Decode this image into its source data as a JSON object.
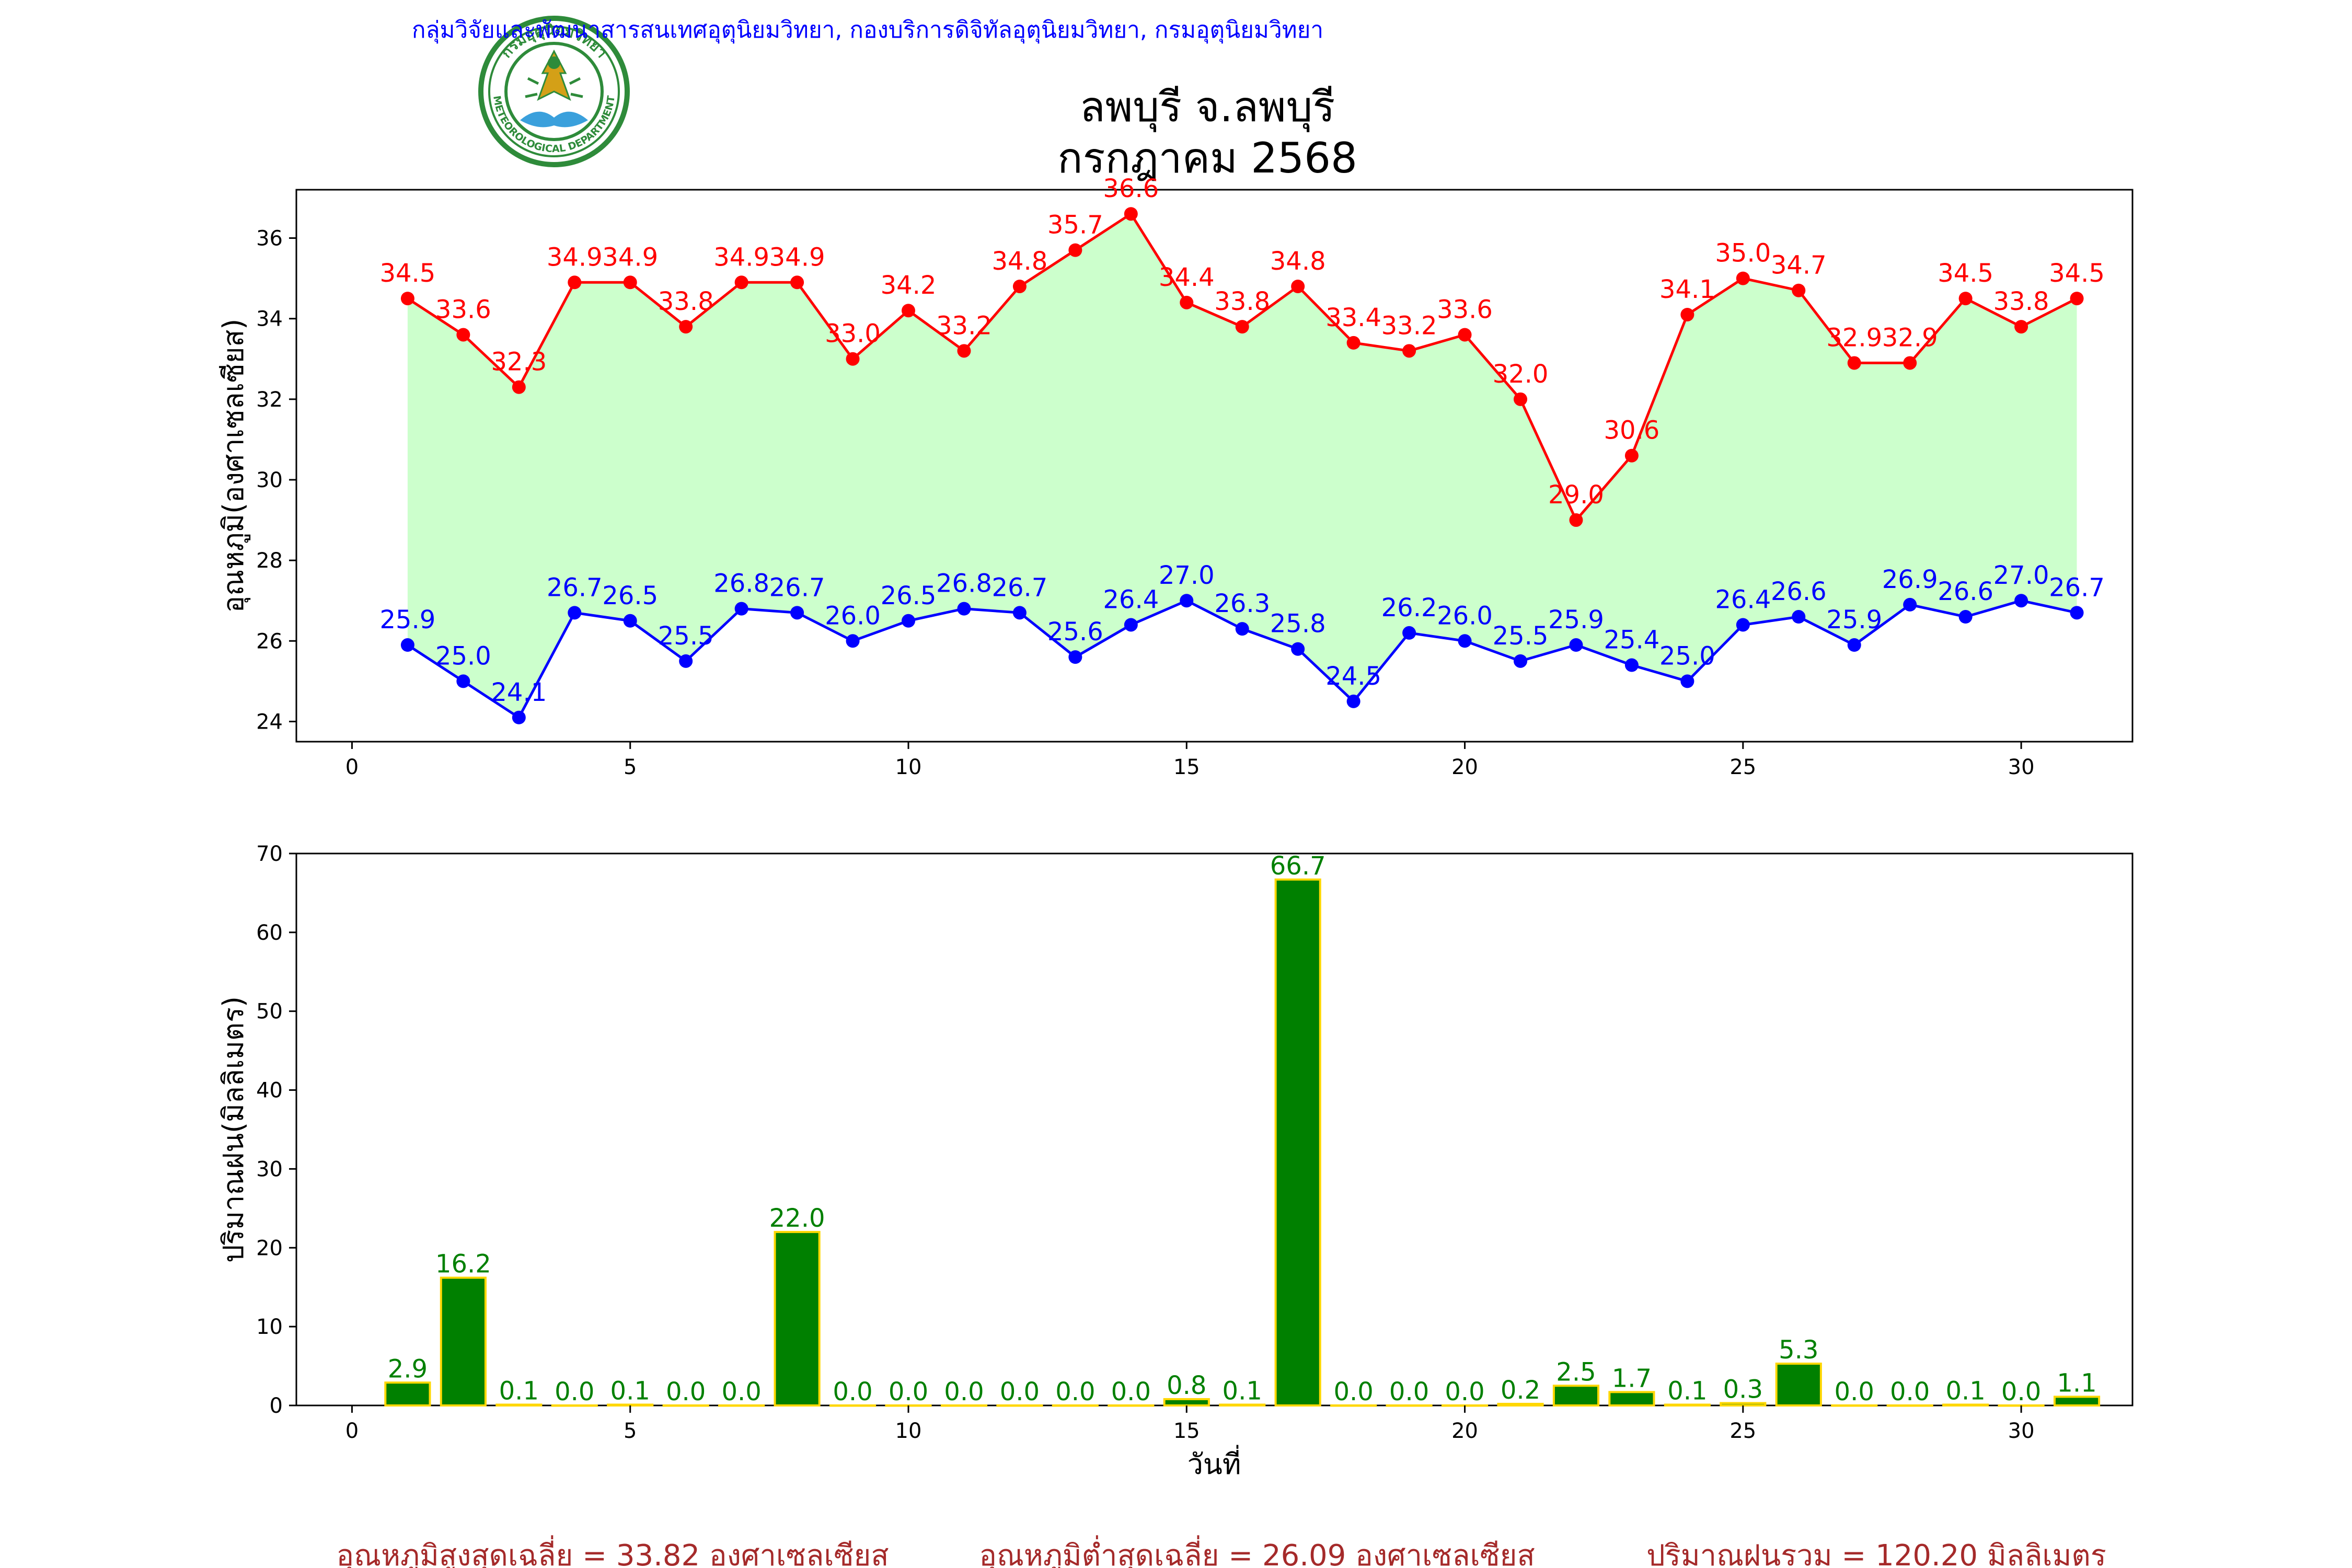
{
  "header": {
    "org_line": "กลุ่มวิจัยและพัฒนาสารสนเทศอุตุนิยมวิทยา, กองบริการดิจิทัลอุตุนิยมวิทยา, กรมอุตุนิยมวิทยา",
    "title_line1": "ลพบุรี จ.ลพบุรี",
    "title_line2": "กรกฎาคม 2568",
    "logo_text_top": "กรมอุตุนิยมวิทยา",
    "logo_text_bottom": "METEOROLOGICAL DEPARTMENT"
  },
  "colors": {
    "max_temp": "#ff0000",
    "min_temp": "#0000ff",
    "fill": "#ccffcc",
    "bar": "#008000",
    "bar_edge": "#ffd700",
    "org_text": "#0000ff",
    "summary_text": "#a52a2a"
  },
  "chart_data": [
    {
      "type": "line",
      "ylabel": "อุณหภูมิ(องศาเซลเซียส)",
      "xlabel": "",
      "xlim": [
        -1,
        32
      ],
      "ylim": [
        23.5,
        37.2
      ],
      "xticks": [
        0,
        5,
        10,
        15,
        20,
        25,
        30
      ],
      "yticks": [
        24,
        26,
        28,
        30,
        32,
        34,
        36
      ],
      "x": [
        1,
        2,
        3,
        4,
        5,
        6,
        7,
        8,
        9,
        10,
        11,
        12,
        13,
        14,
        15,
        16,
        17,
        18,
        19,
        20,
        21,
        22,
        23,
        24,
        25,
        26,
        27,
        28,
        29,
        30,
        31
      ],
      "series": [
        {
          "key": "max",
          "values": [
            34.5,
            33.6,
            32.3,
            34.9,
            34.9,
            33.8,
            34.9,
            34.9,
            33.0,
            34.2,
            33.2,
            34.8,
            35.7,
            36.6,
            34.4,
            33.8,
            34.8,
            33.4,
            33.2,
            33.6,
            32.0,
            29.0,
            30.6,
            34.1,
            35.0,
            34.7,
            32.9,
            32.9,
            34.5,
            33.8,
            34.5
          ]
        },
        {
          "key": "min",
          "values": [
            25.9,
            25.0,
            24.1,
            26.7,
            26.5,
            25.5,
            26.8,
            26.7,
            26.0,
            26.5,
            26.8,
            26.7,
            25.6,
            26.4,
            27.0,
            26.3,
            25.8,
            24.5,
            26.2,
            26.0,
            25.5,
            25.9,
            25.4,
            25.0,
            26.4,
            26.6,
            25.9,
            26.9,
            26.6,
            27.0,
            26.7
          ]
        }
      ],
      "grid": false
    },
    {
      "type": "bar",
      "ylabel": "ปริมาณฝน(มิลลิเมตร)",
      "xlabel": "วันที่",
      "xlim": [
        -1,
        32
      ],
      "ylim": [
        0,
        70
      ],
      "xticks": [
        0,
        5,
        10,
        15,
        20,
        25,
        30
      ],
      "yticks": [
        0,
        10,
        20,
        30,
        40,
        50,
        60,
        70
      ],
      "x": [
        1,
        2,
        3,
        4,
        5,
        6,
        7,
        8,
        9,
        10,
        11,
        12,
        13,
        14,
        15,
        16,
        17,
        18,
        19,
        20,
        21,
        22,
        23,
        24,
        25,
        26,
        27,
        28,
        29,
        30,
        31
      ],
      "values": [
        2.9,
        16.2,
        0.1,
        0.0,
        0.1,
        0.0,
        0.0,
        22.0,
        0.0,
        0.0,
        0.0,
        0.0,
        0.0,
        0.0,
        0.8,
        0.1,
        66.7,
        0.0,
        0.0,
        0.0,
        0.2,
        2.5,
        1.7,
        0.1,
        0.3,
        5.3,
        0.0,
        0.0,
        0.1,
        0.0,
        1.1
      ],
      "grid": false
    }
  ],
  "summary": {
    "avg_max": "อุณหภูมิสูงสุดเฉลี่ย = 33.82 องศาเซลเซียส",
    "avg_min": "อุณหภูมิต่ำสุดเฉลี่ย = 26.09 องศาเซลเซียส",
    "total_rain": "ปริมาณฝนรวม = 120.20 มิลลิเมตร"
  }
}
